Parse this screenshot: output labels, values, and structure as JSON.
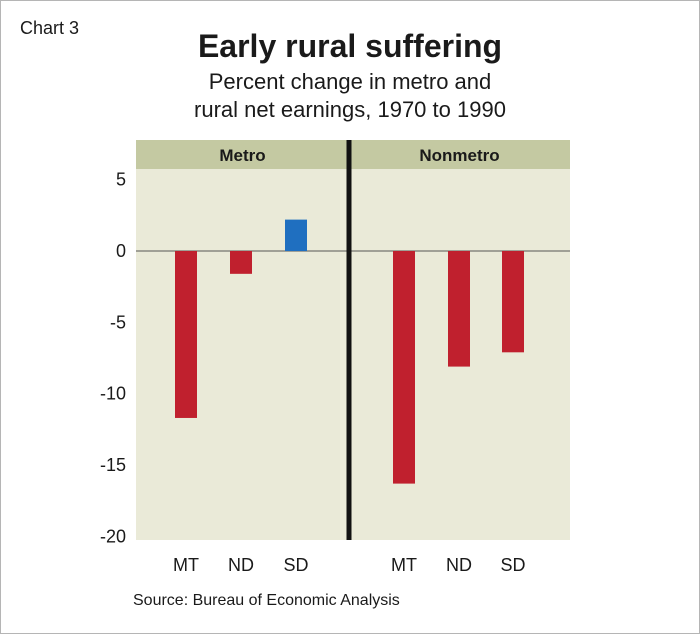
{
  "chart_label": "Chart 3",
  "source": "Source: Bureau of Economic Analysis",
  "colors": {
    "plot_bg": "#eaead8",
    "header_bg": "#c4c9a2",
    "negative": "#c0202e",
    "positive": "#1f6fc0",
    "divider": "#111111"
  },
  "chart_data": {
    "type": "bar",
    "title": "Early rural suffering",
    "subtitle": "Percent change in metro and rural net earnings, 1970 to 1990",
    "subtitle_lines": [
      "Percent change in metro and",
      "rural net earnings, 1970 to 1990"
    ],
    "ylim": [
      -20,
      6
    ],
    "yticks": [
      5,
      0,
      -5,
      -10,
      -15,
      -20
    ],
    "ytick_labels": [
      "5",
      "0",
      "-5",
      "-10",
      "-15",
      "-20"
    ],
    "grid": false,
    "panels": [
      {
        "name": "Metro",
        "categories": [
          "MT",
          "ND",
          "SD"
        ],
        "values": [
          -11.7,
          -1.6,
          2.2
        ]
      },
      {
        "name": "Nonmetro",
        "categories": [
          "MT",
          "ND",
          "SD"
        ],
        "values": [
          -16.3,
          -8.1,
          -7.1
        ]
      }
    ]
  }
}
